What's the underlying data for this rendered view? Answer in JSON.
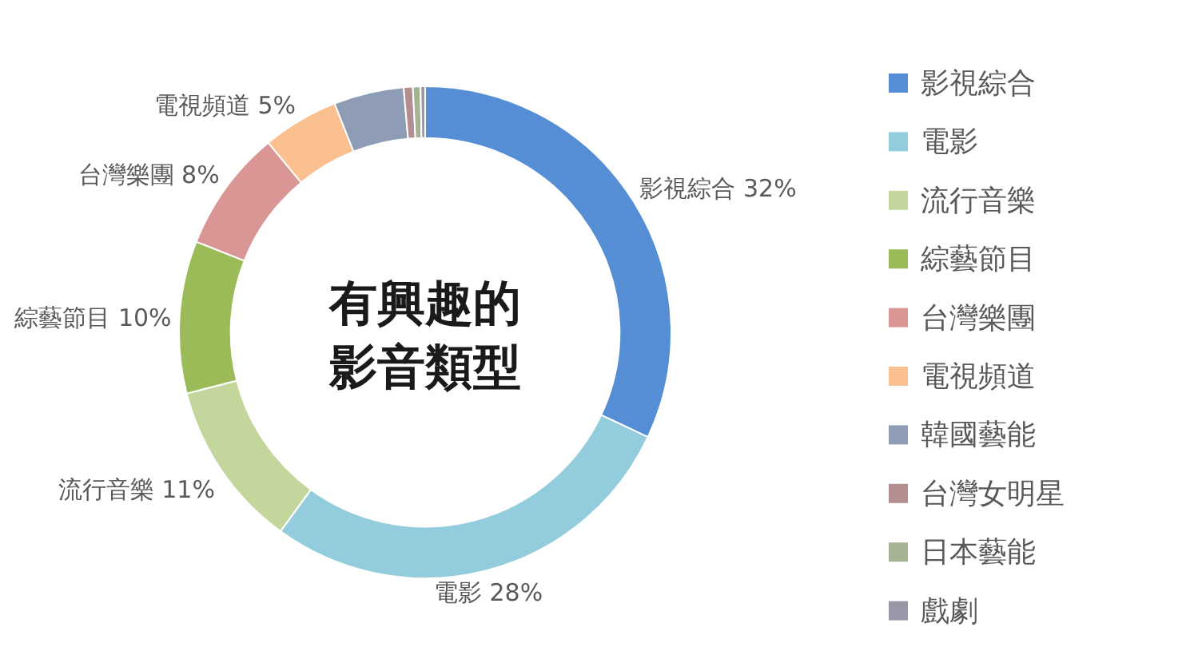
{
  "chart_data": {
    "type": "donut",
    "title": "有興趣的影音類型",
    "categories": [
      "影視綜合",
      "電影",
      "流行音樂",
      "綜藝節目",
      "台灣樂團",
      "電視頻道",
      "韓國藝能",
      "台灣女明星",
      "日本藝能",
      "戲劇"
    ],
    "values": [
      32,
      28,
      11,
      10,
      8,
      5,
      4.6,
      0.6,
      0.5,
      0.3
    ],
    "value_labels": [
      "32%",
      "28%",
      "11%",
      "10%",
      "8%",
      "5%",
      null,
      null,
      null,
      null
    ],
    "colors": [
      "#558ed5",
      "#93cddd",
      "#c3d69b",
      "#9bbb59",
      "#d99694",
      "#fac090",
      "#8e9db5",
      "#b48e8e",
      "#a4b393",
      "#9a96a8"
    ],
    "legend": "right"
  }
}
